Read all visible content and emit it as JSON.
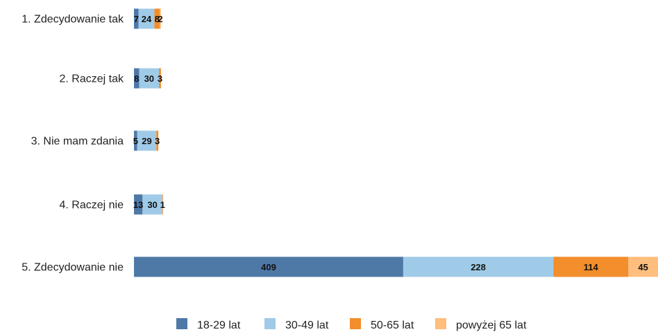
{
  "chart_data": {
    "type": "bar",
    "orientation": "horizontal",
    "stacked": true,
    "title": "",
    "xlabel": "",
    "ylabel": "",
    "categories": [
      "1. Zdecydowanie tak",
      "2. Raczej tak",
      "3. Nie mam zdania",
      "4. Raczej nie",
      "5. Zdecydowanie nie"
    ],
    "series": [
      {
        "name": "18-29 lat",
        "color": "#4e79a7",
        "values": [
          7,
          8,
          5,
          13,
          409
        ]
      },
      {
        "name": "30-49 lat",
        "color": "#a0cbe8",
        "values": [
          24,
          30,
          29,
          30,
          228
        ]
      },
      {
        "name": "50-65 lat",
        "color": "#f28e2b",
        "values": [
          8,
          3,
          3,
          1,
          114
        ]
      },
      {
        "name": "powyżej 65 lat",
        "color": "#ffbe7d",
        "values": [
          2,
          0,
          0,
          0,
          45
        ]
      }
    ],
    "value_labels": [
      [
        "7",
        "24",
        "8",
        "2"
      ],
      [
        "8",
        "30",
        "3",
        ""
      ],
      [
        "5",
        "29",
        "3",
        ""
      ],
      [
        "13",
        "30",
        "1",
        ""
      ],
      [
        "409",
        "228",
        "114",
        "45"
      ]
    ],
    "grid": false,
    "legend_position": "bottom"
  }
}
